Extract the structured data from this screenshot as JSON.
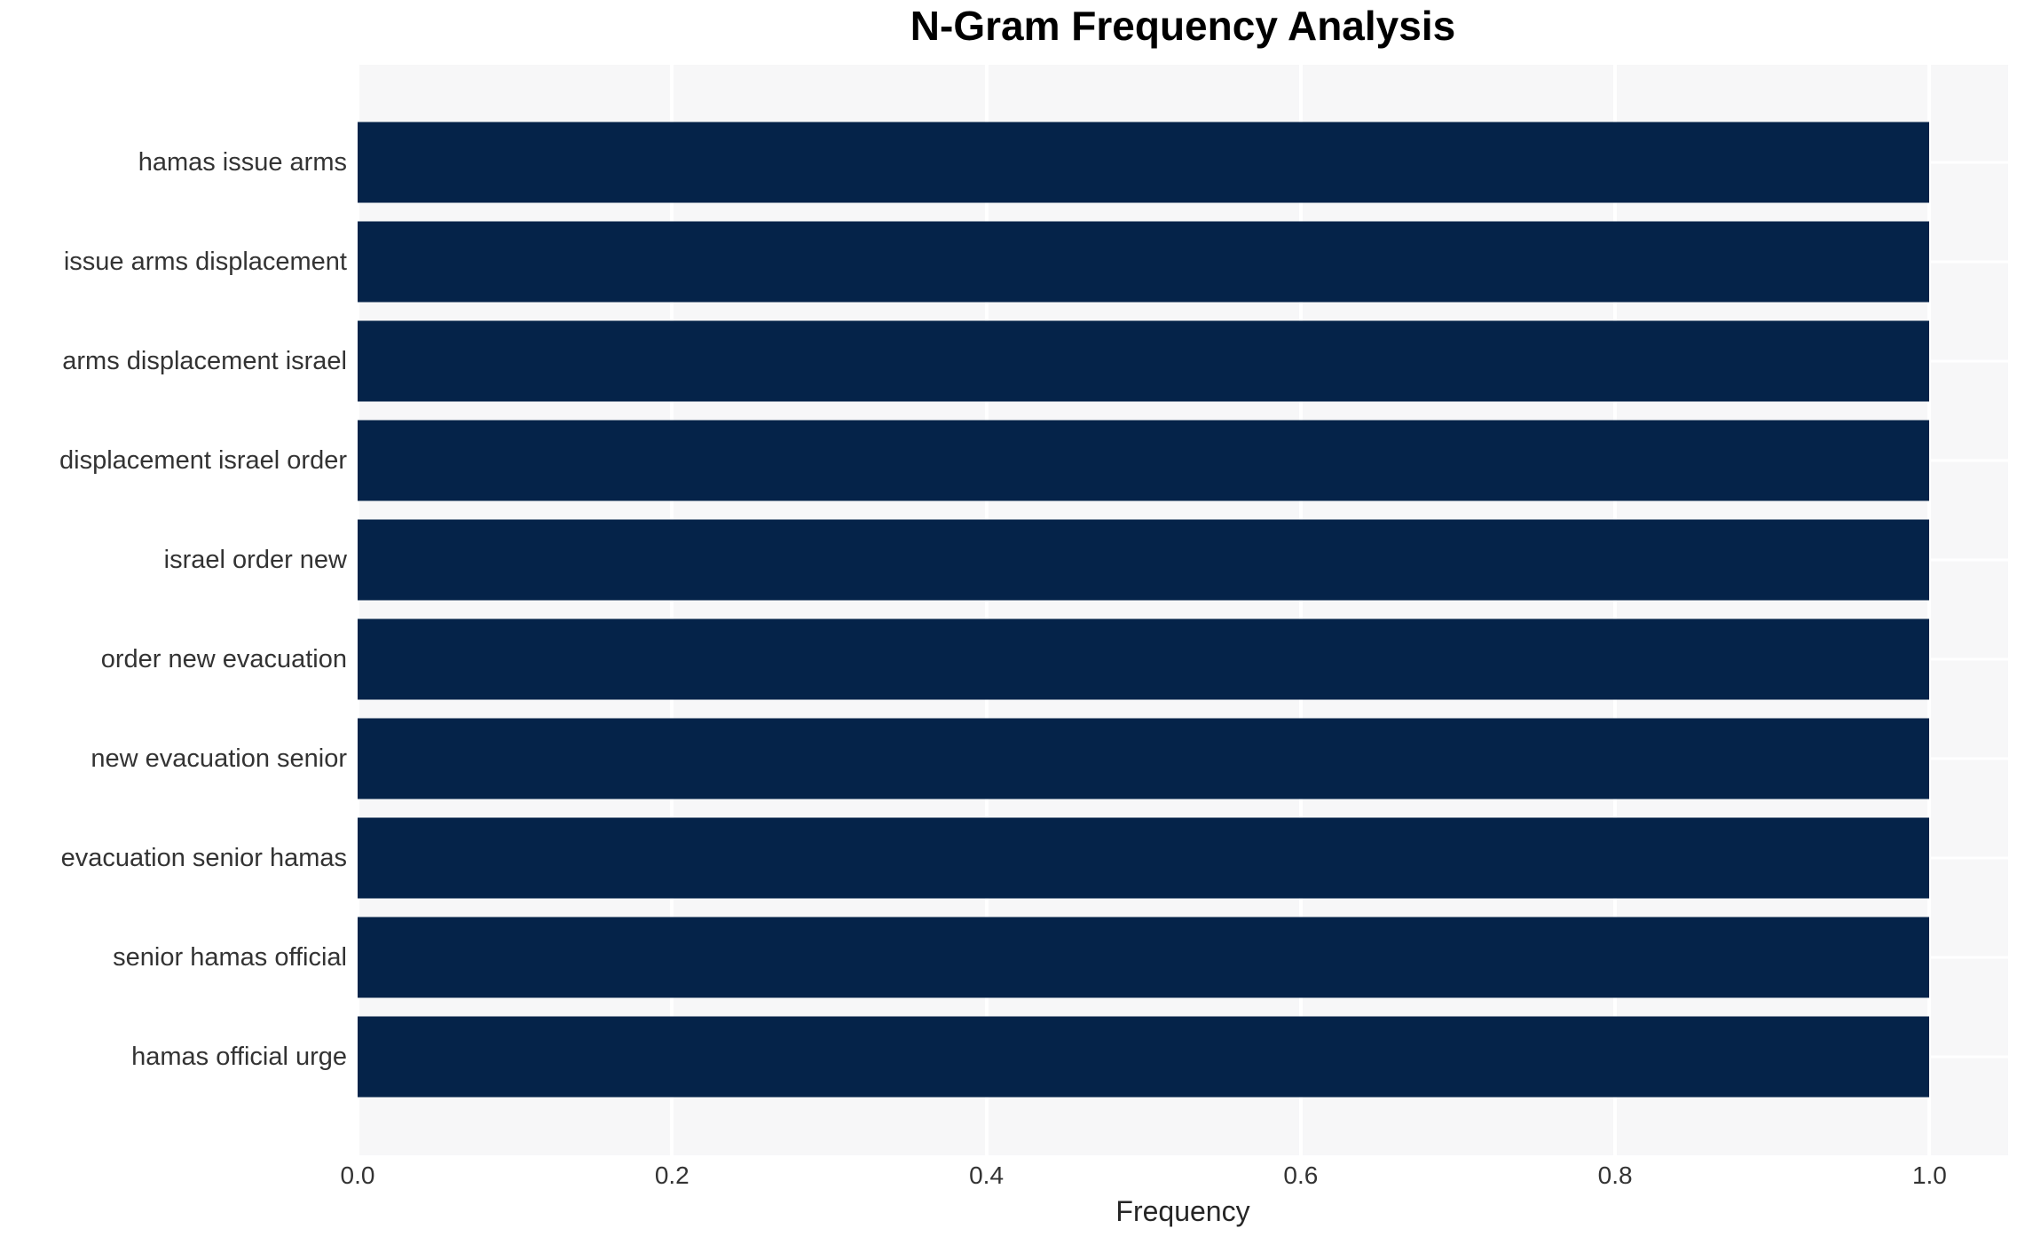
{
  "chart_data": {
    "type": "bar",
    "orientation": "horizontal",
    "title": "N-Gram Frequency Analysis",
    "xlabel": "Frequency",
    "ylabel": "",
    "categories": [
      "hamas issue arms",
      "issue arms displacement",
      "arms displacement israel",
      "displacement israel order",
      "israel order new",
      "order new evacuation",
      "new evacuation senior",
      "evacuation senior hamas",
      "senior hamas official",
      "hamas official urge"
    ],
    "values": [
      1.0,
      1.0,
      1.0,
      1.0,
      1.0,
      1.0,
      1.0,
      1.0,
      1.0,
      1.0
    ],
    "x_ticks": [
      0.0,
      0.2,
      0.4,
      0.6,
      0.8,
      1.0
    ],
    "x_tick_labels": [
      "0.0",
      "0.2",
      "0.4",
      "0.6",
      "0.8",
      "1.0"
    ],
    "xlim": [
      0,
      1.05
    ],
    "grid": true,
    "legend": false,
    "colors": {
      "bar": "#052349",
      "plot_background": "#f7f7f8",
      "grid": "#ffffff",
      "figure_background": "#ffffff",
      "title_text": "#000000",
      "tick_text": "#333333"
    }
  }
}
